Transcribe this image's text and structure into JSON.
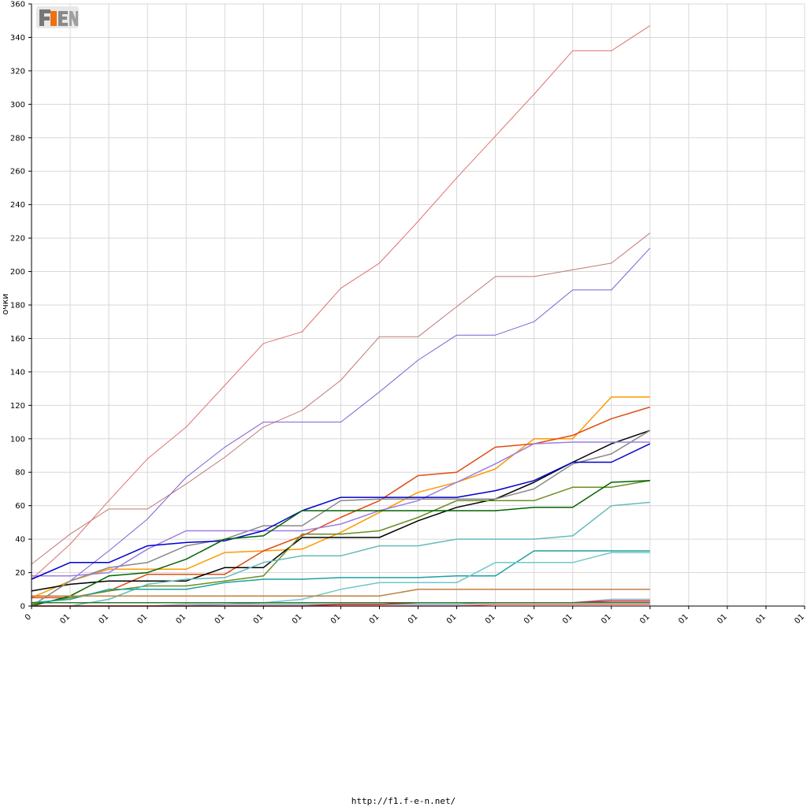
{
  "footer_url": "http://f1.f-e-n.net/",
  "logo_text": "F1EN",
  "chart_data": {
    "type": "line",
    "title": "",
    "xlabel": "",
    "ylabel": "очки",
    "ylim": [
      0,
      360
    ],
    "y_ticks": [
      0,
      20,
      40,
      60,
      80,
      100,
      120,
      140,
      160,
      180,
      200,
      220,
      240,
      260,
      280,
      300,
      320,
      340,
      360
    ],
    "x_tick_labels": [
      "0",
      "01",
      "01",
      "01",
      "01",
      "01",
      "01",
      "01",
      "01",
      "01",
      "01",
      "01",
      "01",
      "01",
      "01",
      "01",
      "01",
      "01",
      "01",
      "01",
      "01"
    ],
    "grid": true,
    "legend": "none",
    "series": [
      {
        "color": "#e07070",
        "width": 1,
        "values": [
          16,
          37,
          63,
          88,
          107,
          132,
          157,
          164,
          190,
          205,
          230,
          256,
          281,
          306,
          332,
          332,
          347
        ]
      },
      {
        "color": "#c07878",
        "width": 1,
        "values": [
          25,
          43,
          58,
          58,
          73,
          89,
          107,
          117,
          135,
          161,
          161,
          179,
          197,
          197,
          201,
          205,
          223
        ]
      },
      {
        "color": "#7b5fd6",
        "width": 1,
        "values": [
          0,
          15,
          33,
          52,
          77,
          95,
          110,
          110,
          110,
          128,
          147,
          162,
          162,
          170,
          189,
          189,
          214
        ]
      },
      {
        "color": "#ff9900",
        "width": 1.5,
        "values": [
          5,
          15,
          22,
          22,
          22,
          32,
          33,
          34,
          44,
          56,
          68,
          74,
          82,
          100,
          100,
          125,
          125
        ]
      },
      {
        "color": "#e04c10",
        "width": 1.5,
        "values": [
          5,
          5,
          9,
          19,
          19,
          19,
          33,
          42,
          53,
          63,
          78,
          80,
          95,
          97,
          102,
          112,
          119
        ]
      },
      {
        "color": "#000000",
        "width": 1.5,
        "values": [
          9,
          13,
          15,
          15,
          15,
          23,
          23,
          41,
          41,
          41,
          51,
          59,
          64,
          74,
          86,
          97,
          105
        ]
      },
      {
        "color": "#888888",
        "width": 1.5,
        "values": [
          0,
          15,
          23,
          26,
          36,
          40,
          48,
          48,
          63,
          64,
          64,
          64,
          64,
          70,
          85,
          91,
          105
        ]
      },
      {
        "color": "#9b7fe6",
        "width": 1.5,
        "values": [
          18,
          18,
          20,
          34,
          45,
          45,
          45,
          45,
          49,
          57,
          63,
          74,
          85,
          97,
          98,
          98,
          98
        ]
      },
      {
        "color": "#0000cc",
        "width": 1.5,
        "values": [
          16,
          26,
          26,
          36,
          38,
          39,
          45,
          57,
          65,
          65,
          65,
          65,
          69,
          75,
          86,
          86,
          97
        ]
      },
      {
        "color": "#6b8e23",
        "width": 1.5,
        "values": [
          1,
          5,
          9,
          12,
          12,
          15,
          18,
          43,
          43,
          45,
          53,
          63,
          63,
          63,
          71,
          71,
          75
        ]
      },
      {
        "color": "#006400",
        "width": 1.5,
        "values": [
          0,
          6,
          18,
          20,
          28,
          40,
          42,
          57,
          57,
          57,
          57,
          57,
          57,
          59,
          59,
          74,
          75
        ]
      },
      {
        "color": "#66bbbb",
        "width": 1.5,
        "values": [
          0,
          0,
          4,
          13,
          16,
          17,
          26,
          30,
          30,
          36,
          36,
          40,
          40,
          40,
          42,
          60,
          62
        ]
      },
      {
        "color": "#20a0a0",
        "width": 1.5,
        "values": [
          2,
          4,
          10,
          10,
          10,
          14,
          16,
          16,
          17,
          17,
          17,
          18,
          18,
          33,
          33,
          33,
          33
        ]
      },
      {
        "color": "#70c8c8",
        "width": 1.5,
        "values": [
          0,
          0,
          0,
          0,
          0,
          1,
          2,
          4,
          10,
          14,
          14,
          14,
          26,
          26,
          26,
          32,
          32
        ]
      },
      {
        "color": "#c08040",
        "width": 1.5,
        "values": [
          6,
          6,
          6,
          6,
          6,
          6,
          6,
          6,
          6,
          6,
          10,
          10,
          10,
          10,
          10,
          10,
          10
        ]
      },
      {
        "color": "#8aa8c8",
        "width": 1.5,
        "values": [
          0,
          0,
          0,
          0,
          1,
          1,
          1,
          1,
          1,
          1,
          1,
          1,
          2,
          2,
          2,
          4,
          4
        ]
      },
      {
        "color": "#cc2222",
        "width": 1.5,
        "values": [
          0,
          0,
          0,
          0,
          0,
          0,
          0,
          0,
          1,
          1,
          2,
          2,
          2,
          2,
          2,
          3,
          3
        ]
      },
      {
        "color": "#2e7d32",
        "width": 1.5,
        "values": [
          2,
          2,
          2,
          2,
          2,
          2,
          2,
          2,
          2,
          2,
          2,
          2,
          2,
          2,
          2,
          2,
          2
        ]
      },
      {
        "color": "#ff6666",
        "width": 1.5,
        "values": [
          0,
          0,
          0,
          0,
          0,
          0,
          0,
          0,
          0,
          0,
          0,
          0,
          1,
          1,
          1,
          1,
          1
        ]
      }
    ]
  }
}
